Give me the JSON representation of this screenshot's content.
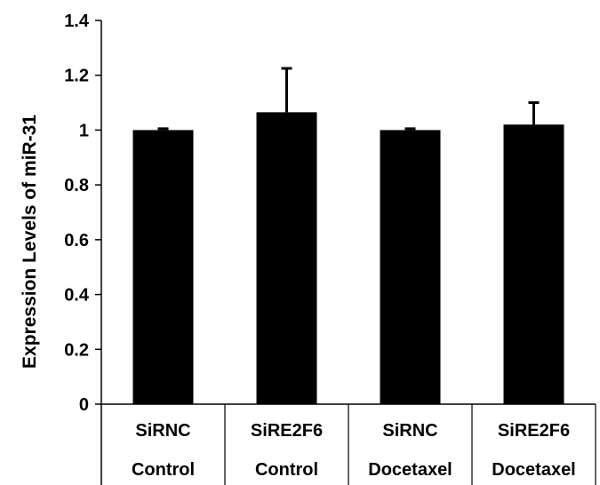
{
  "chart_data": {
    "type": "bar",
    "categories": [
      {
        "line1": "SiRNC",
        "line2": "Control"
      },
      {
        "line1": "SiRE2F6",
        "line2": "Control"
      },
      {
        "line1": "SiRNC",
        "line2": "Docetaxel"
      },
      {
        "line1": "SiRE2F6",
        "line2": "Docetaxel"
      }
    ],
    "values": [
      1.0,
      1.065,
      1.0,
      1.02
    ],
    "errors": [
      0.005,
      0.16,
      0.005,
      0.08
    ],
    "ylabel": "Expression Levels of miR-31",
    "ylim": [
      0,
      1.4
    ],
    "yticks": [
      "0",
      "0.2",
      "0.4",
      "0.6",
      "0.8",
      "1",
      "1.2",
      "1.4"
    ],
    "grid": false,
    "bar_color": "#000000"
  }
}
